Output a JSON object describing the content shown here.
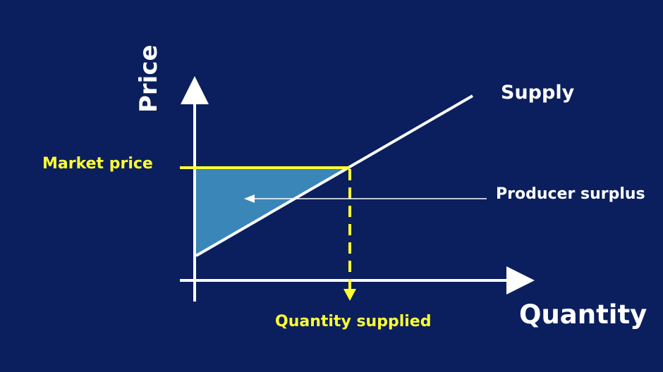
{
  "diagram": {
    "y_axis_label": "Price",
    "x_axis_label": "Quantity",
    "supply_label": "Supply",
    "market_price_label": "Market price",
    "quantity_supplied_label": "Quantity supplied",
    "surplus_label": "Producer surplus"
  },
  "colors": {
    "background": "#0b1f5e",
    "axis": "#ffffff",
    "supply_line": "#ffffff",
    "highlight": "#ffff33",
    "surplus_fill": "#3a86b8"
  }
}
